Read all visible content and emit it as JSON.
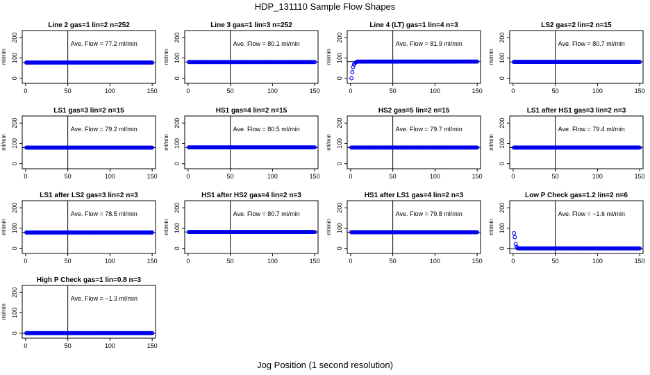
{
  "figure": {
    "title": "HDP_131110  Sample Flow Shapes",
    "xlabel": "Jog Position (1 second resolution)"
  },
  "colors": {
    "points": "#0000ee",
    "axis": "#000000"
  },
  "chart_data": [
    {
      "type": "scatter",
      "title": "Line 2 gas=1 lin=2 n=252",
      "ylabel": "ml/min",
      "xlim": [
        0,
        150
      ],
      "ylim": [
        0,
        200
      ],
      "xticks": [
        "0",
        "50",
        "100",
        "150"
      ],
      "yticks": [
        "0",
        "100",
        "200"
      ],
      "vline": 50,
      "hline": 77.2,
      "annotation": "Ave. Flow =  77.2  ml/min",
      "x": [
        1,
        150
      ],
      "y": [
        77.2,
        77.2
      ]
    },
    {
      "type": "scatter",
      "title": "Line 3 gas=1 lin=3 n=252",
      "ylabel": "ml/min",
      "xlim": [
        0,
        150
      ],
      "ylim": [
        0,
        200
      ],
      "xticks": [
        "0",
        "50",
        "100",
        "150"
      ],
      "yticks": [
        "0",
        "100",
        "200"
      ],
      "vline": 50,
      "hline": 80.1,
      "annotation": "Ave. Flow =  80.1  ml/min",
      "x": [
        1,
        150
      ],
      "y": [
        80.1,
        80.1
      ]
    },
    {
      "type": "scatter",
      "title": "Line 4 (LT) gas=1 lin=4 n=3",
      "ylabel": "ml/min",
      "xlim": [
        0,
        150
      ],
      "ylim": [
        0,
        200
      ],
      "xticks": [
        "0",
        "50",
        "100",
        "150"
      ],
      "yticks": [
        "0",
        "100",
        "200"
      ],
      "vline": 50,
      "hline": 81.9,
      "annotation": "Ave. Flow =  81.9  ml/min",
      "x": [
        1,
        2,
        3,
        4,
        5,
        6,
        7,
        8,
        150
      ],
      "y": [
        0,
        30,
        55,
        68,
        74,
        78,
        80,
        82,
        82
      ]
    },
    {
      "type": "scatter",
      "title": "LS2 gas=2 lin=2 n=15",
      "ylabel": "ml/min",
      "xlim": [
        0,
        150
      ],
      "ylim": [
        0,
        200
      ],
      "xticks": [
        "0",
        "50",
        "100",
        "150"
      ],
      "yticks": [
        "0",
        "100",
        "200"
      ],
      "vline": 50,
      "hline": 80.7,
      "annotation": "Ave. Flow =  80.7  ml/min",
      "x": [
        1,
        150
      ],
      "y": [
        80.7,
        80.7
      ]
    },
    {
      "type": "scatter",
      "title": "LS1 gas=3 lin=2 n=15",
      "ylabel": "ml/min",
      "xlim": [
        0,
        150
      ],
      "ylim": [
        0,
        200
      ],
      "xticks": [
        "0",
        "50",
        "100",
        "150"
      ],
      "yticks": [
        "0",
        "100",
        "200"
      ],
      "vline": 50,
      "hline": 79.2,
      "annotation": "Ave. Flow =  79.2  ml/min",
      "x": [
        1,
        150
      ],
      "y": [
        79.2,
        79.2
      ]
    },
    {
      "type": "scatter",
      "title": "HS1 gas=4 lin=2 n=15",
      "ylabel": "ml/min",
      "xlim": [
        0,
        150
      ],
      "ylim": [
        0,
        200
      ],
      "xticks": [
        "0",
        "50",
        "100",
        "150"
      ],
      "yticks": [
        "0",
        "100",
        "200"
      ],
      "vline": 50,
      "hline": 80.5,
      "annotation": "Ave. Flow =  80.5  ml/min",
      "x": [
        1,
        150
      ],
      "y": [
        80.5,
        80.5
      ]
    },
    {
      "type": "scatter",
      "title": "HS2 gas=5 lin=2 n=15",
      "ylabel": "ml/min",
      "xlim": [
        0,
        150
      ],
      "ylim": [
        0,
        200
      ],
      "xticks": [
        "0",
        "50",
        "100",
        "150"
      ],
      "yticks": [
        "0",
        "100",
        "200"
      ],
      "vline": 50,
      "hline": 79.7,
      "annotation": "Ave. Flow =  79.7  ml/min",
      "x": [
        1,
        150
      ],
      "y": [
        79.7,
        79.7
      ]
    },
    {
      "type": "scatter",
      "title": "LS1 after HS1 gas=3 lin=2 n=3",
      "ylabel": "ml/min",
      "xlim": [
        0,
        150
      ],
      "ylim": [
        0,
        200
      ],
      "xticks": [
        "0",
        "50",
        "100",
        "150"
      ],
      "yticks": [
        "0",
        "100",
        "200"
      ],
      "vline": 50,
      "hline": 79.4,
      "annotation": "Ave. Flow =  79.4  ml/min",
      "x": [
        1,
        150
      ],
      "y": [
        79.4,
        79.4
      ]
    },
    {
      "type": "scatter",
      "title": "LS1 after LS2 gas=3 lin=2 n=3",
      "ylabel": "ml/min",
      "xlim": [
        0,
        150
      ],
      "ylim": [
        0,
        200
      ],
      "xticks": [
        "0",
        "50",
        "100",
        "150"
      ],
      "yticks": [
        "0",
        "100",
        "200"
      ],
      "vline": 50,
      "hline": 78.5,
      "annotation": "Ave. Flow =  78.5  ml/min",
      "x": [
        1,
        150
      ],
      "y": [
        78.5,
        78.5
      ]
    },
    {
      "type": "scatter",
      "title": "HS1 after HS2 gas=4 lin=2 n=3",
      "ylabel": "ml/min",
      "xlim": [
        0,
        150
      ],
      "ylim": [
        0,
        200
      ],
      "xticks": [
        "0",
        "50",
        "100",
        "150"
      ],
      "yticks": [
        "0",
        "100",
        "200"
      ],
      "vline": 50,
      "hline": 80.7,
      "annotation": "Ave. Flow =  80.7  ml/min",
      "x": [
        1,
        150
      ],
      "y": [
        80.7,
        80.7
      ]
    },
    {
      "type": "scatter",
      "title": "HS1 after LS1 gas=4 lin=2 n=3",
      "ylabel": "ml/min",
      "xlim": [
        0,
        150
      ],
      "ylim": [
        0,
        200
      ],
      "xticks": [
        "0",
        "50",
        "100",
        "150"
      ],
      "yticks": [
        "0",
        "100",
        "200"
      ],
      "vline": 50,
      "hline": 79.8,
      "annotation": "Ave. Flow =  79.8  ml/min",
      "x": [
        1,
        150
      ],
      "y": [
        79.8,
        79.8
      ]
    },
    {
      "type": "scatter",
      "title": "Low P Check gas=1.2 lin=2 n=6",
      "ylabel": "ml/min",
      "xlim": [
        0,
        150
      ],
      "ylim": [
        0,
        200
      ],
      "xticks": [
        "0",
        "50",
        "100",
        "150"
      ],
      "yticks": [
        "0",
        "100",
        "200"
      ],
      "vline": 50,
      "hline": -1.6,
      "annotation": "Ave. Flow =  −1.6  ml/min",
      "x": [
        1,
        2,
        3,
        4,
        5,
        6,
        150
      ],
      "y": [
        75,
        55,
        22,
        8,
        2,
        0,
        0
      ]
    },
    {
      "type": "scatter",
      "title": "High P Check gas=1 lin=0.8 n=3",
      "ylabel": "ml/min",
      "xlim": [
        0,
        150
      ],
      "ylim": [
        0,
        200
      ],
      "xticks": [
        "0",
        "50",
        "100",
        "150"
      ],
      "yticks": [
        "0",
        "100",
        "200"
      ],
      "vline": 50,
      "hline": -1.3,
      "annotation": "Ave. Flow =  −1.3  ml/min",
      "x": [
        1,
        150
      ],
      "y": [
        0,
        0
      ]
    }
  ]
}
